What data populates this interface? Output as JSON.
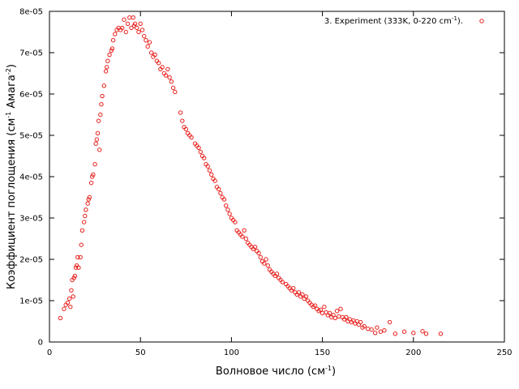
{
  "chart_data": {
    "type": "scatter",
    "xlabel": "Волновое число (см",
    "xlabel_sup": "-1",
    "xlabel_end": ")",
    "ylabel": "Коэффициент поглощения (см",
    "ylabel_sup1": "-1",
    "ylabel_mid": " Амага",
    "ylabel_sup2": "-2",
    "ylabel_end": ")",
    "xlim": [
      0,
      250
    ],
    "ylim": [
      0,
      8e-05
    ],
    "x_ticks": [
      "0",
      "50",
      "100",
      "150",
      "200",
      "250"
    ],
    "x_tick_values": [
      0,
      50,
      100,
      150,
      200,
      250
    ],
    "y_ticks": [
      "0",
      "1e-05",
      "2e-05",
      "3e-05",
      "4e-05",
      "5e-05",
      "6e-05",
      "7e-05",
      "8e-05"
    ],
    "y_tick_values": [
      0,
      1e-05,
      2e-05,
      3e-05,
      4e-05,
      5e-05,
      6e-05,
      7e-05,
      8e-05
    ],
    "grid": false,
    "legend_position": "top-right",
    "series": [
      {
        "name": "3. Experiment (333K, 0-220 cm-1).",
        "legend_main": "3. Experiment (333K, 0-220 cm",
        "legend_sup": "-1",
        "legend_end": ").",
        "color": "#e8201c",
        "marker": "open-circle",
        "points": [
          [
            6,
            5.8e-06
          ],
          [
            8,
            8e-06
          ],
          [
            9,
            9e-06
          ],
          [
            10,
            9.5e-06
          ],
          [
            11,
            1.05e-05
          ],
          [
            11.5,
            8.5e-06
          ],
          [
            12,
            1.25e-05
          ],
          [
            12.5,
            1.5e-05
          ],
          [
            13,
            1.1e-05
          ],
          [
            13.5,
            1.55e-05
          ],
          [
            14,
            1.6e-05
          ],
          [
            14.5,
            1.8e-05
          ],
          [
            15,
            1.85e-05
          ],
          [
            15.5,
            2.05e-05
          ],
          [
            16,
            1.8e-05
          ],
          [
            17,
            2.05e-05
          ],
          [
            17.5,
            2.35e-05
          ],
          [
            18,
            2.7e-05
          ],
          [
            19,
            2.9e-05
          ],
          [
            19.5,
            3.05e-05
          ],
          [
            20,
            3.2e-05
          ],
          [
            21,
            3.35e-05
          ],
          [
            21.5,
            3.45e-05
          ],
          [
            22,
            3.5e-05
          ],
          [
            23,
            3.85e-05
          ],
          [
            23.5,
            4e-05
          ],
          [
            24,
            4.05e-05
          ],
          [
            25,
            4.3e-05
          ],
          [
            25.5,
            4.8e-05
          ],
          [
            26,
            4.9e-05
          ],
          [
            26.5,
            5.05e-05
          ],
          [
            27,
            5.35e-05
          ],
          [
            27.5,
            4.65e-05
          ],
          [
            28,
            5.5e-05
          ],
          [
            28.5,
            5.75e-05
          ],
          [
            29,
            5.95e-05
          ],
          [
            30,
            6.2e-05
          ],
          [
            31,
            6.55e-05
          ],
          [
            31.5,
            6.65e-05
          ],
          [
            32,
            6.8e-05
          ],
          [
            33,
            6.95e-05
          ],
          [
            34,
            7.05e-05
          ],
          [
            34.5,
            7.1e-05
          ],
          [
            35,
            7.3e-05
          ],
          [
            36,
            7.45e-05
          ],
          [
            37,
            7.55e-05
          ],
          [
            38,
            7.6e-05
          ],
          [
            39,
            7.55e-05
          ],
          [
            40,
            7.6e-05
          ],
          [
            41,
            7.8e-05
          ],
          [
            42,
            7.5e-05
          ],
          [
            43,
            7.7e-05
          ],
          [
            44,
            7.85e-05
          ],
          [
            45,
            7.6e-05
          ],
          [
            46,
            7.85e-05
          ],
          [
            46.5,
            7.65e-05
          ],
          [
            47,
            7.7e-05
          ],
          [
            48,
            7.6e-05
          ],
          [
            49,
            7.5e-05
          ],
          [
            50,
            7.7e-05
          ],
          [
            51,
            7.55e-05
          ],
          [
            52,
            7.4e-05
          ],
          [
            53,
            7.3e-05
          ],
          [
            54,
            7.15e-05
          ],
          [
            55,
            7.25e-05
          ],
          [
            56,
            7e-05
          ],
          [
            57,
            6.9e-05
          ],
          [
            58,
            6.95e-05
          ],
          [
            59,
            6.8e-05
          ],
          [
            60,
            6.75e-05
          ],
          [
            61,
            6.6e-05
          ],
          [
            62,
            6.65e-05
          ],
          [
            63,
            6.5e-05
          ],
          [
            64,
            6.45e-05
          ],
          [
            65,
            6.6e-05
          ],
          [
            66,
            6.4e-05
          ],
          [
            67,
            6.3e-05
          ],
          [
            68,
            6.15e-05
          ],
          [
            69,
            6.05e-05
          ],
          [
            72,
            5.55e-05
          ],
          [
            73,
            5.35e-05
          ],
          [
            74,
            5.2e-05
          ],
          [
            75,
            5.15e-05
          ],
          [
            76,
            5.05e-05
          ],
          [
            77,
            5e-05
          ],
          [
            78,
            4.95e-05
          ],
          [
            80,
            4.8e-05
          ],
          [
            81,
            4.75e-05
          ],
          [
            82,
            4.7e-05
          ],
          [
            83,
            4.6e-05
          ],
          [
            84,
            4.5e-05
          ],
          [
            85,
            4.45e-05
          ],
          [
            86,
            4.3e-05
          ],
          [
            87,
            4.25e-05
          ],
          [
            88,
            4.15e-05
          ],
          [
            89,
            4.05e-05
          ],
          [
            90,
            3.95e-05
          ],
          [
            91,
            3.9e-05
          ],
          [
            92,
            3.75e-05
          ],
          [
            93,
            3.7e-05
          ],
          [
            94,
            3.6e-05
          ],
          [
            95,
            3.5e-05
          ],
          [
            96,
            3.45e-05
          ],
          [
            97,
            3.3e-05
          ],
          [
            98,
            3.2e-05
          ],
          [
            99,
            3.1e-05
          ],
          [
            100,
            3e-05
          ],
          [
            101,
            2.95e-05
          ],
          [
            102,
            2.9e-05
          ],
          [
            103,
            2.7e-05
          ],
          [
            104,
            2.65e-05
          ],
          [
            105,
            2.6e-05
          ],
          [
            106,
            2.55e-05
          ],
          [
            107,
            2.7e-05
          ],
          [
            108,
            2.5e-05
          ],
          [
            109,
            2.4e-05
          ],
          [
            110,
            2.35e-05
          ],
          [
            111,
            2.3e-05
          ],
          [
            112,
            2.25e-05
          ],
          [
            113,
            2.3e-05
          ],
          [
            114,
            2.2e-05
          ],
          [
            115,
            2.15e-05
          ],
          [
            116,
            2.05e-05
          ],
          [
            117,
            1.95e-05
          ],
          [
            118,
            1.9e-05
          ],
          [
            119,
            2e-05
          ],
          [
            120,
            1.85e-05
          ],
          [
            121,
            1.75e-05
          ],
          [
            122,
            1.7e-05
          ],
          [
            123,
            1.65e-05
          ],
          [
            124,
            1.6e-05
          ],
          [
            125,
            1.65e-05
          ],
          [
            126,
            1.55e-05
          ],
          [
            127,
            1.5e-05
          ],
          [
            128,
            1.45e-05
          ],
          [
            130,
            1.4e-05
          ],
          [
            131,
            1.35e-05
          ],
          [
            132,
            1.3e-05
          ],
          [
            133,
            1.25e-05
          ],
          [
            134,
            1.3e-05
          ],
          [
            135,
            1.2e-05
          ],
          [
            136,
            1.15e-05
          ],
          [
            137,
            1.2e-05
          ],
          [
            138,
            1.1e-05
          ],
          [
            139,
            1.15e-05
          ],
          [
            140,
            1.05e-05
          ],
          [
            141,
            1.1e-05
          ],
          [
            142,
            1e-05
          ],
          [
            143,
            9.5e-06
          ],
          [
            144,
            9e-06
          ],
          [
            145,
            8.5e-06
          ],
          [
            146,
            8.8e-06
          ],
          [
            147,
            8e-06
          ],
          [
            148,
            7.5e-06
          ],
          [
            149,
            7.8e-06
          ],
          [
            150,
            7e-06
          ],
          [
            151,
            8.5e-06
          ],
          [
            152,
            7.2e-06
          ],
          [
            153,
            6.5e-06
          ],
          [
            154,
            7e-06
          ],
          [
            155,
            6e-06
          ],
          [
            156,
            6.5e-06
          ],
          [
            157,
            5.8e-06
          ],
          [
            158,
            7.5e-06
          ],
          [
            159,
            6.2e-06
          ],
          [
            160,
            8e-06
          ],
          [
            161,
            6e-06
          ],
          [
            162,
            5.5e-06
          ],
          [
            163,
            6e-06
          ],
          [
            164,
            5e-06
          ],
          [
            165,
            5.5e-06
          ],
          [
            166,
            4.8e-06
          ],
          [
            167,
            5.2e-06
          ],
          [
            168,
            4.5e-06
          ],
          [
            169,
            5e-06
          ],
          [
            170,
            4.2e-06
          ],
          [
            171,
            4.8e-06
          ],
          [
            172,
            3.5e-06
          ],
          [
            173,
            3.8e-06
          ],
          [
            175,
            3.2e-06
          ],
          [
            177,
            3e-06
          ],
          [
            179,
            2.2e-06
          ],
          [
            180,
            3.5e-06
          ],
          [
            182,
            2.5e-06
          ],
          [
            184,
            2.8e-06
          ],
          [
            187,
            4.8e-06
          ],
          [
            190,
            2e-06
          ],
          [
            195,
            2.5e-06
          ],
          [
            200,
            2.2e-06
          ],
          [
            205,
            2.6e-06
          ],
          [
            207,
            2e-06
          ],
          [
            215,
            2e-06
          ]
        ]
      }
    ]
  }
}
